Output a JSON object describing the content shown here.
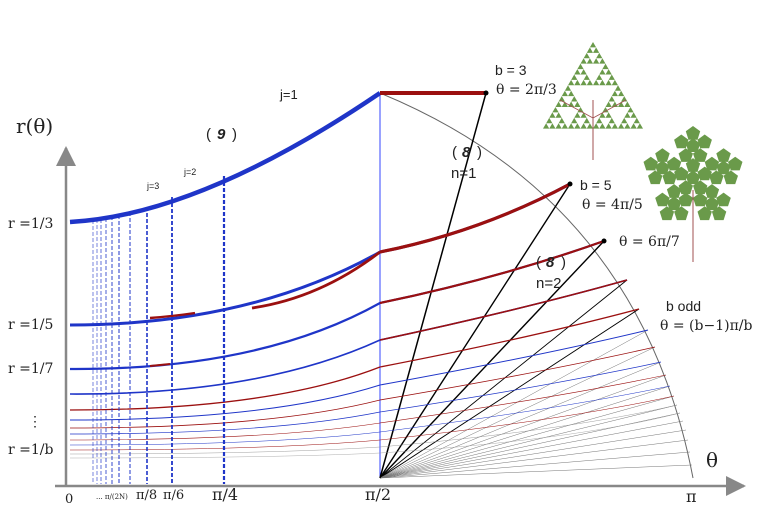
{
  "axes": {
    "y_label": "r(θ)",
    "x_label": "θ",
    "x_ticks": [
      "0",
      "... π/(2N)",
      "π/8",
      "π/6",
      "π/4",
      "π/2",
      "π"
    ],
    "y_ticks": [
      "r =1/3",
      "r =1/5",
      "r =1/7",
      "⋮",
      "r =1/b"
    ]
  },
  "labels": {
    "j1": "j=1",
    "j2": "j=2",
    "j3": "j=3",
    "eq9": "9",
    "eq8_top": "8",
    "n1": "n=1",
    "eq8_mid": "8",
    "n2": "n=2",
    "b3": "b = 3",
    "theta3": "θ = 2π/3",
    "b5": "b = 5",
    "theta5": "θ = 4π/5",
    "theta7": "θ = 6π/7",
    "b_odd": "b odd",
    "theta_b": "θ = (b−1)π/b"
  },
  "colors": {
    "blue": "#1f35c8",
    "red": "#9b1010",
    "black": "#000000",
    "fractal": "#6a9a4a"
  }
}
